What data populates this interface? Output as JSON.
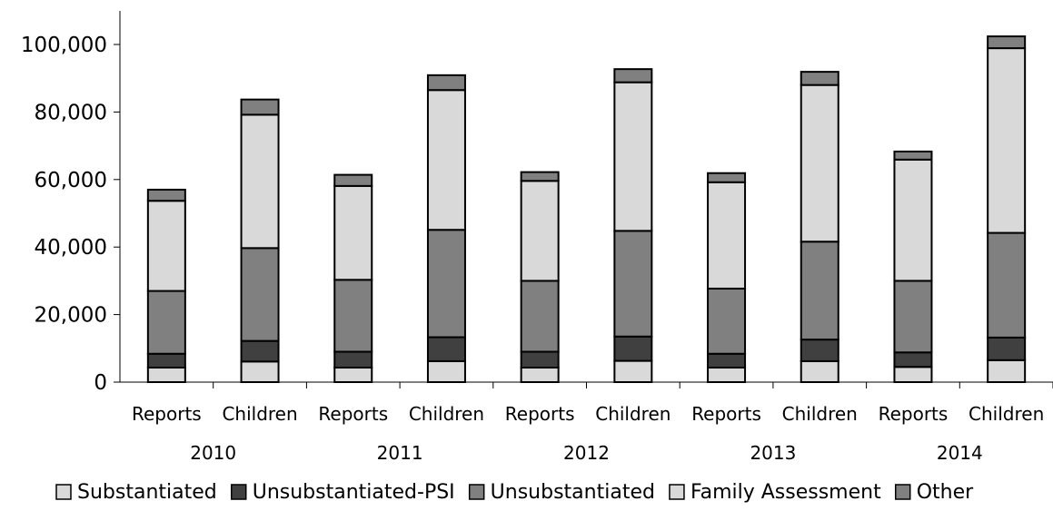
{
  "chart_data": {
    "type": "bar",
    "stacked": true,
    "ylim": [
      0,
      100000
    ],
    "yticks": [
      0,
      20000,
      40000,
      60000,
      80000,
      100000
    ],
    "ytick_labels": [
      "0",
      "20,000",
      "40,000",
      "60,000",
      "80,000",
      "100,000"
    ],
    "grid": false,
    "legend_position": "bottom",
    "groups": [
      "2010",
      "2011",
      "2012",
      "2013",
      "2014"
    ],
    "categories": [
      "Reports",
      "Children",
      "Reports",
      "Children",
      "Reports",
      "Children",
      "Reports",
      "Children",
      "Reports",
      "Children"
    ],
    "series": [
      {
        "name": "Substantiated",
        "color": "#d9d9d9",
        "values": [
          4300,
          6100,
          4300,
          6200,
          4300,
          6300,
          4300,
          6200,
          4500,
          6500
        ]
      },
      {
        "name": "Unsubstantiated-PSI",
        "color": "#404040",
        "values": [
          4100,
          6100,
          4700,
          7100,
          4700,
          7200,
          4100,
          6400,
          4300,
          6700
        ]
      },
      {
        "name": "Unsubstantiated",
        "color": "#808080",
        "values": [
          18600,
          27500,
          21300,
          31800,
          21000,
          31300,
          19300,
          29000,
          21200,
          31000
        ]
      },
      {
        "name": "Family Assessment",
        "color": "#d9d9d9",
        "values": [
          26700,
          39500,
          27800,
          41400,
          29600,
          44000,
          31500,
          46400,
          35900,
          54700
        ]
      },
      {
        "name": "Other",
        "color": "#808080",
        "values": [
          3300,
          4500,
          3300,
          4400,
          2600,
          3900,
          2700,
          3900,
          2400,
          3500
        ]
      }
    ]
  }
}
